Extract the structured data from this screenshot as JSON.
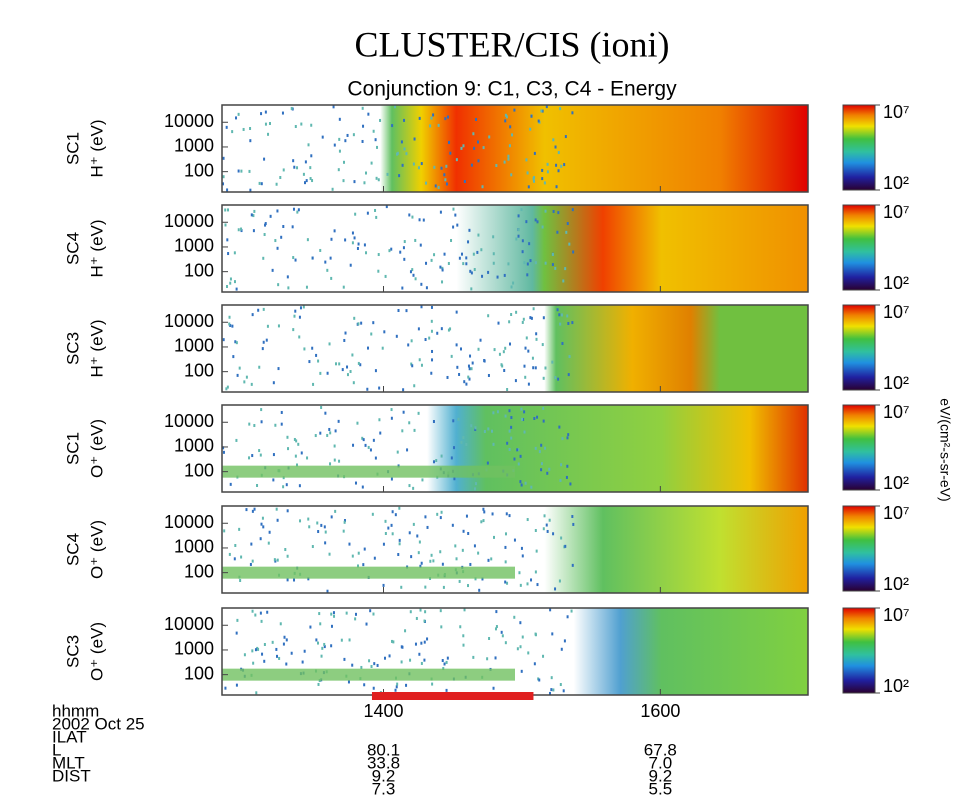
{
  "title": "CLUSTER/CIS (ioni)",
  "subtitle": "Conjunction 9: C1, C3, C4 - Energy",
  "colorbar_label": "eV/(cm²-s-sr-eV)",
  "chart_data": [
    {
      "type": "spectrogram",
      "ylabel": [
        "SC1",
        "H⁺ (eV)"
      ],
      "log_y": true,
      "ylim": [
        15,
        50000
      ],
      "yticks": [
        100,
        1000,
        10000
      ],
      "xlim": [
        770,
        1024
      ],
      "xticks": [
        {
          "value": 840,
          "label": "1400"
        },
        {
          "value": 960,
          "label": "1600"
        }
      ],
      "clim": [
        100,
        10000000
      ],
      "cticks": [
        {
          "value": 100,
          "label": "10²"
        },
        {
          "value": 10000000,
          "label": "10⁷"
        }
      ]
    },
    {
      "type": "spectrogram",
      "ylabel": [
        "SC4",
        "H⁺ (eV)"
      ],
      "log_y": true,
      "ylim": [
        15,
        50000
      ],
      "yticks": [
        100,
        1000,
        10000
      ],
      "xlim": [
        770,
        1024
      ],
      "xticks": [
        {
          "value": 840,
          "label": "1400"
        },
        {
          "value": 960,
          "label": "1600"
        }
      ],
      "clim": [
        100,
        10000000
      ],
      "cticks": [
        {
          "value": 100,
          "label": "10²"
        },
        {
          "value": 10000000,
          "label": "10⁷"
        }
      ]
    },
    {
      "type": "spectrogram",
      "ylabel": [
        "SC3",
        "H⁺ (eV)"
      ],
      "log_y": true,
      "ylim": [
        15,
        50000
      ],
      "yticks": [
        100,
        1000,
        10000
      ],
      "xlim": [
        770,
        1024
      ],
      "xticks": [
        {
          "value": 840,
          "label": "1400"
        },
        {
          "value": 960,
          "label": "1600"
        }
      ],
      "clim": [
        100,
        10000000
      ],
      "cticks": [
        {
          "value": 100,
          "label": "10²"
        },
        {
          "value": 10000000,
          "label": "10⁷"
        }
      ]
    },
    {
      "type": "spectrogram",
      "ylabel": [
        "SC1",
        "O⁺ (eV)"
      ],
      "log_y": true,
      "ylim": [
        15,
        50000
      ],
      "yticks": [
        100,
        1000,
        10000
      ],
      "xlim": [
        770,
        1024
      ],
      "xticks": [
        {
          "value": 840,
          "label": "1400"
        },
        {
          "value": 960,
          "label": "1600"
        }
      ],
      "clim": [
        100,
        10000000
      ],
      "cticks": [
        {
          "value": 100,
          "label": "10²"
        },
        {
          "value": 10000000,
          "label": "10⁷"
        }
      ]
    },
    {
      "type": "spectrogram",
      "ylabel": [
        "SC4",
        "O⁺ (eV)"
      ],
      "log_y": true,
      "ylim": [
        15,
        50000
      ],
      "yticks": [
        100,
        1000,
        10000
      ],
      "xlim": [
        770,
        1024
      ],
      "xticks": [
        {
          "value": 840,
          "label": "1400"
        },
        {
          "value": 960,
          "label": "1600"
        }
      ],
      "clim": [
        100,
        10000000
      ],
      "cticks": [
        {
          "value": 100,
          "label": "10²"
        },
        {
          "value": 10000000,
          "label": "10⁷"
        }
      ]
    },
    {
      "type": "spectrogram",
      "ylabel": [
        "SC3",
        "O⁺ (eV)"
      ],
      "log_y": true,
      "ylim": [
        15,
        50000
      ],
      "yticks": [
        100,
        1000,
        10000
      ],
      "xlim": [
        770,
        1024
      ],
      "xticks": [
        {
          "value": 840,
          "label": "1400"
        },
        {
          "value": 960,
          "label": "1600"
        }
      ],
      "clim": [
        100,
        10000000
      ],
      "cticks": [
        {
          "value": 100,
          "label": "10²"
        },
        {
          "value": 10000000,
          "label": "10⁷"
        }
      ],
      "interval": [
        835,
        905
      ],
      "interval_color": "#e02020"
    }
  ],
  "ephemeris": {
    "rows": [
      [
        "hhmm"
      ],
      [
        "2002 Oct 25"
      ],
      [
        "ILAT",
        "80.1",
        "67.8"
      ],
      [
        "L",
        "33.8",
        "7.0"
      ],
      [
        "MLT",
        "9.2",
        "9.2"
      ],
      [
        "DIST",
        "7.3",
        "5.5"
      ]
    ]
  }
}
